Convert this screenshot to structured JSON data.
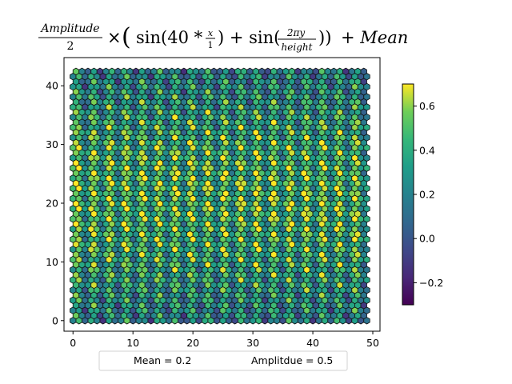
{
  "chart_data": {
    "type": "heatmap",
    "subtype": "hexbin",
    "title_parts": {
      "numerator": "Amplitude",
      "denominator": "2",
      "times": "×",
      "open_paren": "(",
      "sin1": "sin(40 * ",
      "frac_x_num": "x",
      "frac_x_den": "1",
      "plus1": ") + sin(",
      "frac_y_num": "2πy",
      "frac_y_den": "height",
      "close_inner": "))",
      "mean_term": "+ Mean"
    },
    "xlim": [
      -1.5,
      51.2
    ],
    "ylim": [
      -1.8,
      44.8
    ],
    "x_ticks": [
      0,
      10,
      20,
      30,
      40,
      50
    ],
    "y_ticks": [
      0,
      10,
      20,
      30,
      40
    ],
    "grid": false,
    "hex_grid": {
      "x_start": 0,
      "x_end": 49,
      "x_step": 1,
      "y_start": 0,
      "y_end": 42.4,
      "y_step": 0.866
    },
    "function": {
      "mean": 0.2,
      "amplitude": 0.5,
      "x_frequency": 40,
      "height": 84.8
    },
    "colormap": "viridis",
    "colorbar": {
      "vmin": -0.3,
      "vmax": 0.7,
      "ticks": [
        -0.2,
        0.0,
        0.2,
        0.4,
        0.6
      ],
      "tick_labels": [
        "−0.2",
        "0.0",
        "0.2",
        "0.4",
        "0.6"
      ]
    },
    "legend": {
      "placement": "bottom-center",
      "entries": [
        "Mean = 0.2",
        "Amplitdue = 0.5"
      ]
    }
  }
}
